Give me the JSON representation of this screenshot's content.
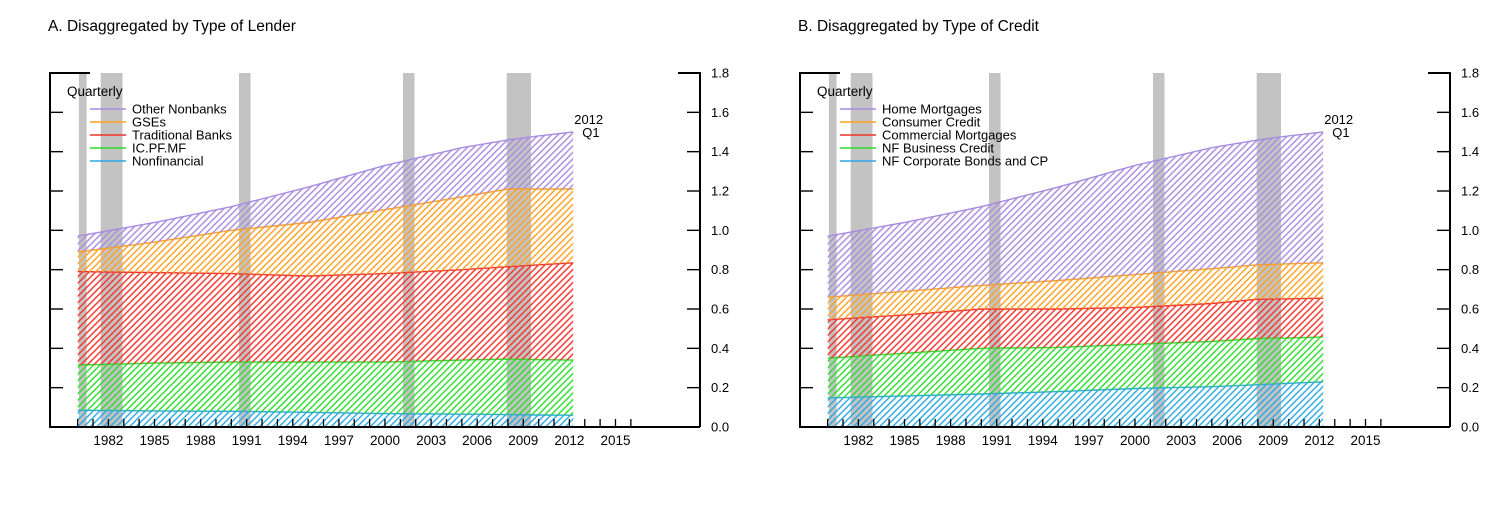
{
  "figure": {
    "background": "#ffffff",
    "axis_color": "#000000",
    "recession_band_color": "#c3c3c3"
  },
  "chart_data": [
    {
      "type": "area",
      "stacked": true,
      "title": "A. Disaggregated by Type of Lender",
      "freq_label": "Quarterly",
      "annotation": [
        "2012",
        "Q1"
      ],
      "legend_position": "top-left-inside",
      "grid": false,
      "x_points": [
        1980,
        1985,
        1990,
        1995,
        2000,
        2005,
        2008,
        2010,
        2012.25
      ],
      "series": [
        {
          "name": "Nonfinancial",
          "color": "#2ca8e0",
          "values": [
            0.085,
            0.082,
            0.08,
            0.075,
            0.068,
            0.065,
            0.063,
            0.061,
            0.06
          ]
        },
        {
          "name": "IC.PF.MF",
          "color": "#2ddc2d",
          "values": [
            0.23,
            0.243,
            0.25,
            0.255,
            0.262,
            0.275,
            0.282,
            0.281,
            0.28
          ]
        },
        {
          "name": "Traditional Banks",
          "color": "#f2332b",
          "values": [
            0.475,
            0.46,
            0.45,
            0.438,
            0.45,
            0.46,
            0.47,
            0.483,
            0.495
          ]
        },
        {
          "name": "GSEs",
          "color": "#ffa021",
          "values": [
            0.1,
            0.155,
            0.22,
            0.272,
            0.325,
            0.37,
            0.395,
            0.385,
            0.375
          ]
        },
        {
          "name": "Other Nonbanks",
          "color": "#a88ce0",
          "values": [
            0.08,
            0.1,
            0.12,
            0.18,
            0.225,
            0.25,
            0.25,
            0.27,
            0.29
          ]
        }
      ],
      "legend_top_to_bottom": [
        "Other Nonbanks",
        "GSEs",
        "Traditional Banks",
        "IC.PF.MF",
        "Nonfinancial"
      ],
      "axis": {
        "y_tick_labels": [
          "0.0",
          "0.2",
          "0.4",
          "0.6",
          "0.8",
          "1.0",
          "1.2",
          "1.4",
          "1.6",
          "1.8"
        ],
        "y_min": 0.0,
        "y_max": 1.8,
        "y_labels_side": "right",
        "x_domain": [
          1978.2,
          2020.5
        ],
        "x_tick_year_start": 1980,
        "x_tick_year_end": 2016,
        "x_label_years": [
          1982,
          1985,
          1988,
          1991,
          1994,
          1997,
          2000,
          2003,
          2006,
          2009,
          2012,
          2015
        ]
      },
      "recessions": [
        [
          1980.08,
          1980.58
        ],
        [
          1981.5,
          1982.92
        ],
        [
          1990.5,
          1991.25
        ],
        [
          2001.17,
          2001.92
        ],
        [
          2007.92,
          2009.5
        ]
      ]
    },
    {
      "type": "area",
      "stacked": true,
      "title": "B. Disaggregated by Type of Credit",
      "freq_label": "Quarterly",
      "annotation": [
        "2012",
        "Q1"
      ],
      "legend_position": "top-left-inside",
      "grid": false,
      "x_points": [
        1980,
        1985,
        1990,
        1995,
        2000,
        2005,
        2008,
        2010,
        2012.25
      ],
      "series": [
        {
          "name": "NF Corporate Bonds and CP",
          "color": "#2ca8e0",
          "values": [
            0.148,
            0.158,
            0.168,
            0.18,
            0.196,
            0.205,
            0.215,
            0.222,
            0.23
          ]
        },
        {
          "name": "NF Business Credit",
          "color": "#2ddc2d",
          "values": [
            0.202,
            0.217,
            0.232,
            0.225,
            0.224,
            0.23,
            0.235,
            0.23,
            0.228
          ]
        },
        {
          "name": "Commercial Mortgages",
          "color": "#f2332b",
          "values": [
            0.195,
            0.195,
            0.2,
            0.195,
            0.188,
            0.193,
            0.2,
            0.2,
            0.197
          ]
        },
        {
          "name": "Consumer Credit",
          "color": "#ffa021",
          "values": [
            0.115,
            0.12,
            0.12,
            0.145,
            0.167,
            0.177,
            0.175,
            0.178,
            0.18
          ]
        },
        {
          "name": "Home Mortgages",
          "color": "#a88ce0",
          "values": [
            0.31,
            0.35,
            0.4,
            0.475,
            0.555,
            0.615,
            0.635,
            0.65,
            0.665
          ]
        }
      ],
      "legend_top_to_bottom": [
        "Home Mortgages",
        "Consumer Credit",
        "Commercial Mortgages",
        "NF Business Credit",
        "NF Corporate Bonds and CP"
      ],
      "axis": {
        "y_tick_labels": [
          "0.0",
          "0.2",
          "0.4",
          "0.6",
          "0.8",
          "1.0",
          "1.2",
          "1.4",
          "1.6",
          "1.8"
        ],
        "y_min": 0.0,
        "y_max": 1.8,
        "y_labels_side": "right",
        "x_domain": [
          1978.2,
          2020.5
        ],
        "x_tick_year_start": 1980,
        "x_tick_year_end": 2016,
        "x_label_years": [
          1982,
          1985,
          1988,
          1991,
          1994,
          1997,
          2000,
          2003,
          2006,
          2009,
          2012,
          2015
        ]
      },
      "recessions": [
        [
          1980.08,
          1980.58
        ],
        [
          1981.5,
          1982.92
        ],
        [
          1990.5,
          1991.25
        ],
        [
          2001.17,
          2001.92
        ],
        [
          2007.92,
          2009.5
        ]
      ]
    }
  ]
}
